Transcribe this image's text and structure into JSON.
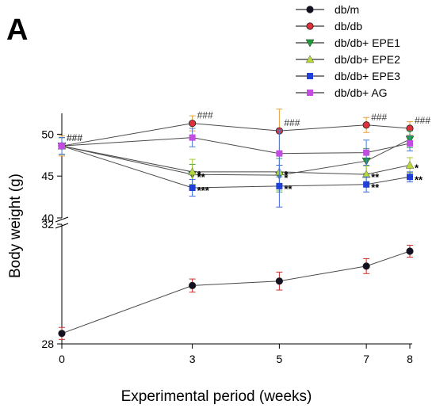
{
  "panel_label": "A",
  "chart_data": {
    "type": "line",
    "xlabel": "Experimental period (weeks)",
    "ylabel": "Body weight (g)",
    "x": [
      0,
      3,
      5,
      7,
      8
    ],
    "x_ticks": [
      "0",
      "3",
      "5",
      "7",
      "8"
    ],
    "y_axis_broken": true,
    "upper_segment": {
      "ylim": [
        40,
        52.5
      ],
      "ticks": [
        "40",
        "45",
        "50"
      ]
    },
    "lower_segment": {
      "ylim": [
        28,
        32
      ],
      "ticks": [
        "28",
        "32"
      ]
    },
    "legend_position": "top-right",
    "series": [
      {
        "name": "db/m",
        "color": "#111122",
        "marker": "circle",
        "segment": "lower",
        "values": [
          28.35,
          29.95,
          30.1,
          30.6,
          31.1
        ],
        "errors": [
          0.2,
          0.22,
          0.3,
          0.25,
          0.2
        ],
        "error_color": "#cc2b2b"
      },
      {
        "name": "db/db",
        "color": "#e0303a",
        "marker": "circle",
        "segment": "upper",
        "values": [
          48.6,
          51.3,
          50.4,
          51.1,
          50.7
        ],
        "errors": [
          1.2,
          0.9,
          2.6,
          0.9,
          0.8
        ],
        "error_color": "#e8a13a",
        "annotations": [
          "###",
          "###",
          "###",
          "###",
          "###"
        ]
      },
      {
        "name": "db/db+ EPE1",
        "color": "#1e9e3a",
        "marker": "triangle-down",
        "segment": "upper",
        "values": [
          48.6,
          45.2,
          45.1,
          46.8,
          49.4
        ],
        "errors": [
          1.0,
          1.2,
          2.0,
          1.5,
          1.0
        ],
        "error_color": "#3a9e55",
        "annotations": [
          "",
          "**",
          "*",
          "",
          ""
        ]
      },
      {
        "name": "db/db+ EPE2",
        "color": "#b8d83a",
        "marker": "triangle-up",
        "segment": "upper",
        "values": [
          48.6,
          45.5,
          45.5,
          45.2,
          46.3
        ],
        "errors": [
          1.0,
          1.5,
          2.2,
          1.0,
          0.9
        ],
        "error_color": "#a8c830",
        "annotations": [
          "",
          "*",
          "*",
          "**",
          "*"
        ]
      },
      {
        "name": "db/db+ EPE3",
        "color": "#1f3fd8",
        "marker": "square",
        "segment": "upper",
        "values": [
          48.6,
          43.6,
          43.8,
          44.0,
          44.9
        ],
        "errors": [
          1.0,
          1.0,
          2.5,
          0.9,
          0.6
        ],
        "error_color": "#3b66e0",
        "annotations": [
          "",
          "***",
          "**",
          "**",
          "**"
        ]
      },
      {
        "name": "db/db+ AG",
        "color": "#c24de0",
        "marker": "square",
        "segment": "upper",
        "values": [
          48.6,
          49.6,
          47.7,
          47.8,
          48.9
        ],
        "errors": [
          1.0,
          1.1,
          2.8,
          1.5,
          0.9
        ],
        "error_color": "#4a7ad8",
        "annotations": [
          "###",
          "",
          "",
          "",
          ""
        ]
      }
    ]
  }
}
